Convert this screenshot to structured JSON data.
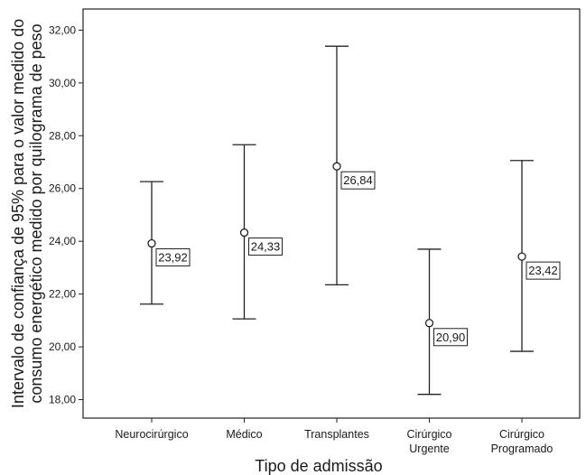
{
  "chart_data": {
    "type": "errorbar",
    "xlabel": "Tipo de admissão",
    "ylabel_lines": [
      "Intervalo de confiança de 95% para o valor medido do",
      "consumo energético medido por quilograma de peso"
    ],
    "ylim": [
      17.3,
      32.8
    ],
    "yticks": [
      18,
      20,
      22,
      24,
      26,
      28,
      30,
      32
    ],
    "ytick_labels": [
      "18,00",
      "20,00",
      "22,00",
      "24,00",
      "26,00",
      "28,00",
      "30,00",
      "32,00"
    ],
    "categories": [
      {
        "lines": [
          "Neurocirúrgico"
        ],
        "mean": 23.92,
        "lower": 21.62,
        "upper": 26.26,
        "label": "23,92"
      },
      {
        "lines": [
          "Médico"
        ],
        "mean": 24.33,
        "lower": 21.06,
        "upper": 27.66,
        "label": "24,33"
      },
      {
        "lines": [
          "Transplantes"
        ],
        "mean": 26.84,
        "lower": 22.35,
        "upper": 31.39,
        "label": "26,84"
      },
      {
        "lines": [
          "Cirúrgico",
          "Urgente"
        ],
        "mean": 20.9,
        "lower": 18.2,
        "upper": 23.7,
        "label": "20,90"
      },
      {
        "lines": [
          "Cirúrgico",
          "Programado"
        ],
        "mean": 23.42,
        "lower": 19.83,
        "upper": 27.06,
        "label": "23,42"
      }
    ],
    "grid": false,
    "legend": "none"
  }
}
